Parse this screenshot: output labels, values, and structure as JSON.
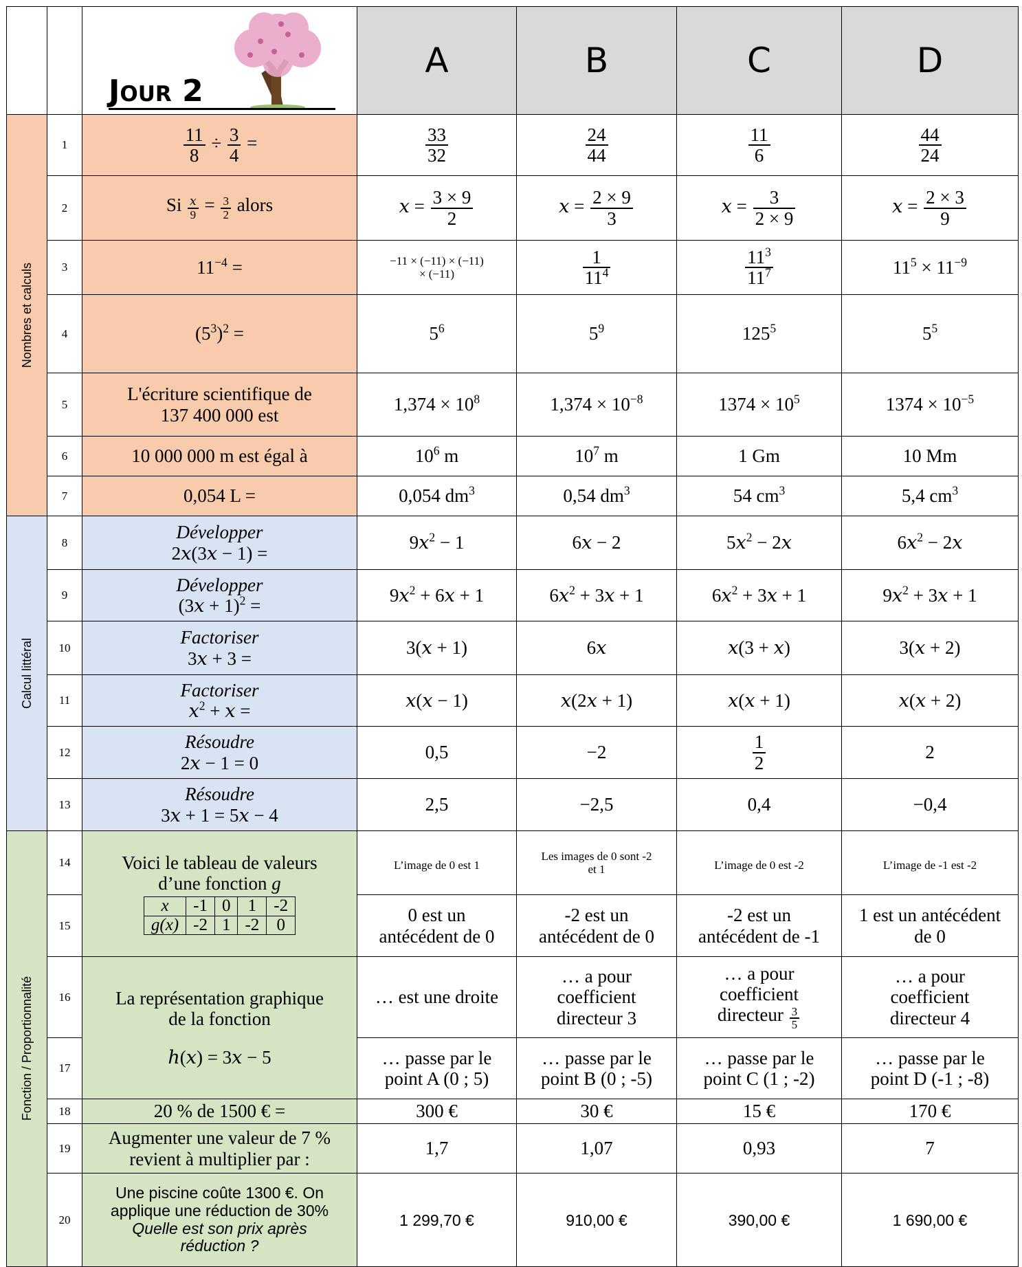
{
  "header": {
    "title": "Jour 2",
    "columns": [
      "A",
      "B",
      "C",
      "D"
    ]
  },
  "sections": [
    {
      "label": "Nombres et calculs",
      "color": "#f8cbad",
      "rows": [
        {
          "number": "1",
          "question": [
            {
              "num": "11",
              "den": "8"
            },
            " ÷ ",
            {
              "num": "3",
              "den": "4"
            },
            " ="
          ],
          "answers": [
            {
              "num": "33",
              "den": "32"
            },
            {
              "num": "24",
              "den": "44"
            },
            {
              "num": "11",
              "den": "6"
            },
            {
              "num": "44",
              "den": "24"
            }
          ]
        },
        {
          "number": "2",
          "question": [
            "Si ",
            {
              "small": {
                "num": "𝑥",
                "den": "9"
              }
            },
            " = ",
            {
              "small": {
                "num": "3",
                "den": "2"
              }
            },
            " alors"
          ],
          "answers": [
            [
              "𝑥 = ",
              {
                "num": "3 × 9",
                "den": "2"
              }
            ],
            [
              "𝑥 = ",
              {
                "num": "2 × 9",
                "den": "3"
              }
            ],
            [
              "𝑥 = ",
              {
                "num": "3",
                "den": "2 × 9"
              }
            ],
            [
              "𝑥 = ",
              {
                "num": "2 × 3",
                "den": "9"
              }
            ]
          ]
        },
        {
          "number": "3",
          "question": [
            "11",
            {
              "sup": "−4"
            },
            " ="
          ],
          "answers": [
            {
              "small": {
                "lines": [
                  "−11 × (−11) × (−11)",
                  "× (−11)"
                ]
              }
            },
            {
              "num": "1",
              "den": [
                "11",
                {
                  "sup": "4"
                }
              ]
            },
            {
              "num": [
                "11",
                {
                  "sup": "3"
                }
              ],
              "den": [
                "11",
                {
                  "sup": "7"
                }
              ]
            },
            [
              "11",
              {
                "sup": "5"
              },
              " × 11",
              {
                "sup": "−9"
              }
            ]
          ]
        },
        {
          "number": "4",
          "question": [
            "(5",
            {
              "sup": "3"
            },
            ")",
            {
              "sup": "2"
            },
            " ="
          ],
          "answers": [
            [
              "5",
              {
                "sup": "6"
              }
            ],
            [
              "5",
              {
                "sup": "9"
              }
            ],
            [
              "125",
              {
                "sup": "5"
              }
            ],
            [
              "5",
              {
                "sup": "5"
              }
            ]
          ]
        },
        {
          "number": "5",
          "question": {
            "lines": [
              "L'écriture scientifique de",
              "137 400 000 est"
            ]
          },
          "answers": [
            [
              "1,374 × 10",
              {
                "sup": "8"
              }
            ],
            [
              "1,374 × 10",
              {
                "sup": "−8"
              }
            ],
            [
              "1374 × 10",
              {
                "sup": "5"
              }
            ],
            [
              "1374 × 10",
              {
                "sup": "−5"
              }
            ]
          ]
        },
        {
          "number": "6",
          "question": "10 000 000 m est égal à",
          "answers": [
            [
              "10",
              {
                "sup": "6"
              },
              " m"
            ],
            [
              "10",
              {
                "sup": "7"
              },
              " m"
            ],
            "1 Gm",
            "10 Mm"
          ]
        },
        {
          "number": "7",
          "question": "0,054 L =",
          "answers": [
            [
              "0,054 dm",
              {
                "sup": "3"
              }
            ],
            [
              "0,54 dm",
              {
                "sup": "3"
              }
            ],
            [
              "54 cm",
              {
                "sup": "3"
              }
            ],
            [
              "5,4 cm",
              {
                "sup": "3"
              }
            ]
          ]
        }
      ]
    },
    {
      "label": "Calcul littéral",
      "color": "#dae3f3",
      "rows": [
        {
          "number": "8",
          "question": {
            "lines": [
              {
                "em": "Développer"
              },
              "2𝑥(3𝑥 − 1) ="
            ]
          },
          "answers": [
            [
              "9𝑥",
              {
                "sup": "2"
              },
              " − 1"
            ],
            "6𝑥 − 2",
            [
              "5𝑥",
              {
                "sup": "2"
              },
              " − 2𝑥"
            ],
            [
              "6𝑥",
              {
                "sup": "2"
              },
              " − 2𝑥"
            ]
          ]
        },
        {
          "number": "9",
          "question": {
            "lines": [
              {
                "em": "Développer"
              },
              [
                "(3𝑥 + 1)",
                {
                  "sup": "2"
                },
                " ="
              ]
            ]
          },
          "answers": [
            [
              "9𝑥",
              {
                "sup": "2"
              },
              " + 6𝑥 + 1"
            ],
            [
              "6𝑥",
              {
                "sup": "2"
              },
              " + 3𝑥 + 1"
            ],
            [
              "6𝑥",
              {
                "sup": "2"
              },
              " + 3𝑥 + 1"
            ],
            [
              "9𝑥",
              {
                "sup": "2"
              },
              " + 3𝑥 + 1"
            ]
          ]
        },
        {
          "number": "10",
          "question": {
            "lines": [
              {
                "em": "Factoriser"
              },
              "3𝑥 + 3 ="
            ]
          },
          "answers": [
            "3(𝑥 + 1)",
            "6𝑥",
            "𝑥(3 + 𝑥)",
            "3(𝑥 + 2)"
          ]
        },
        {
          "number": "11",
          "question": {
            "lines": [
              {
                "em": "Factoriser"
              },
              [
                "𝑥",
                {
                  "sup": "2"
                },
                " + 𝑥 ="
              ]
            ]
          },
          "answers": [
            "𝑥(𝑥 − 1)",
            "𝑥(2𝑥 + 1)",
            "𝑥(𝑥 + 1)",
            "𝑥(𝑥 + 2)"
          ]
        },
        {
          "number": "12",
          "question": {
            "lines": [
              {
                "em": "Résoudre"
              },
              "2𝑥 − 1 = 0"
            ]
          },
          "answers": [
            "0,5",
            "−2",
            {
              "num": "1",
              "den": "2"
            },
            "2"
          ]
        },
        {
          "number": "13",
          "question": {
            "lines": [
              {
                "em": "Résoudre"
              },
              "3𝑥 + 1 = 5𝑥 − 4"
            ]
          },
          "answers": [
            "2,5",
            "−2,5",
            "0,4",
            "−0,4"
          ]
        }
      ]
    },
    {
      "label": "Fonction / Proportionnalité",
      "color": "#d5e4c3",
      "rows": [
        {
          "number": "14",
          "question": {
            "lines": [
              "Voici le tableau de valeurs",
              [
                "d’une fonction ",
                {
                  "em": "g"
                }
              ]
            ],
            "table": [
              [
                {
                  "em": "x"
                },
                "-1",
                "0",
                "1",
                "-2"
              ],
              [
                {
                  "em": "g(x)"
                },
                "-2",
                "1",
                "-2",
                "0"
              ]
            ]
          },
          "question_rows": 2,
          "answers": [
            {
              "small": "L’image de 0 est 1"
            },
            {
              "small": {
                "lines": [
                  "Les images de 0 sont -2",
                  "et 1"
                ]
              }
            },
            {
              "small": "L’image de 0 est -2"
            },
            {
              "small": "L’image de -1 est -2"
            }
          ]
        },
        {
          "number": "15",
          "answers": [
            {
              "lines": [
                "0 est un",
                "antécédent de 0"
              ]
            },
            {
              "lines": [
                "-2 est un",
                "antécédent de 0"
              ]
            },
            {
              "lines": [
                "-2 est un",
                "antécédent de -1"
              ]
            },
            {
              "lines": [
                "1 est un antécédent",
                "de 0"
              ]
            }
          ]
        },
        {
          "number": "16",
          "question": {
            "lines": [
              "La représentation graphique",
              "de la fonction"
            ],
            "formula": "ℎ(𝑥) = 3𝑥 − 5"
          },
          "question_rows": 2,
          "answers": [
            "… est une droite",
            {
              "lines": [
                "… a pour",
                "coefficient",
                "directeur 3"
              ]
            },
            {
              "lines": [
                "… a pour",
                "coefficient",
                [
                  "directeur ",
                  {
                    "small": {
                      "num": "3",
                      "den": "5"
                    }
                  }
                ]
              ]
            },
            {
              "lines": [
                "… a pour",
                "coefficient",
                "directeur 4"
              ]
            }
          ]
        },
        {
          "number": "17",
          "answers": [
            {
              "lines": [
                "… passe par le",
                "point A (0 ; 5)"
              ]
            },
            {
              "lines": [
                "… passe par le",
                "point B (0 ; -5)"
              ]
            },
            {
              "lines": [
                "… passe par le",
                "point C (1 ; -2)"
              ]
            },
            {
              "lines": [
                "… passe par le",
                "point D (-1 ; -8)"
              ]
            }
          ]
        },
        {
          "number": "18",
          "question": "20 % de 1500 € =",
          "answers": [
            "300 €",
            "30 €",
            "15 €",
            "170 €"
          ]
        },
        {
          "number": "19",
          "question": {
            "lines": [
              "Augmenter une valeur de 7 %",
              "revient à multiplier par :"
            ]
          },
          "answers": [
            "1,7",
            "1,07",
            "0,93",
            "7"
          ]
        },
        {
          "number": "20",
          "question": {
            "sans": {
              "lines": [
                "Une piscine coûte 1300 €. On",
                "applique une réduction de 30%",
                {
                  "em": "Quelle est son prix après"
                },
                {
                  "em": "réduction ?"
                }
              ]
            }
          },
          "answers": [
            {
              "sans": "1 299,70 €"
            },
            {
              "sans": "910,00 €"
            },
            {
              "sans": "390,00 €"
            },
            {
              "sans": "1 690,00 €"
            }
          ]
        }
      ]
    }
  ]
}
